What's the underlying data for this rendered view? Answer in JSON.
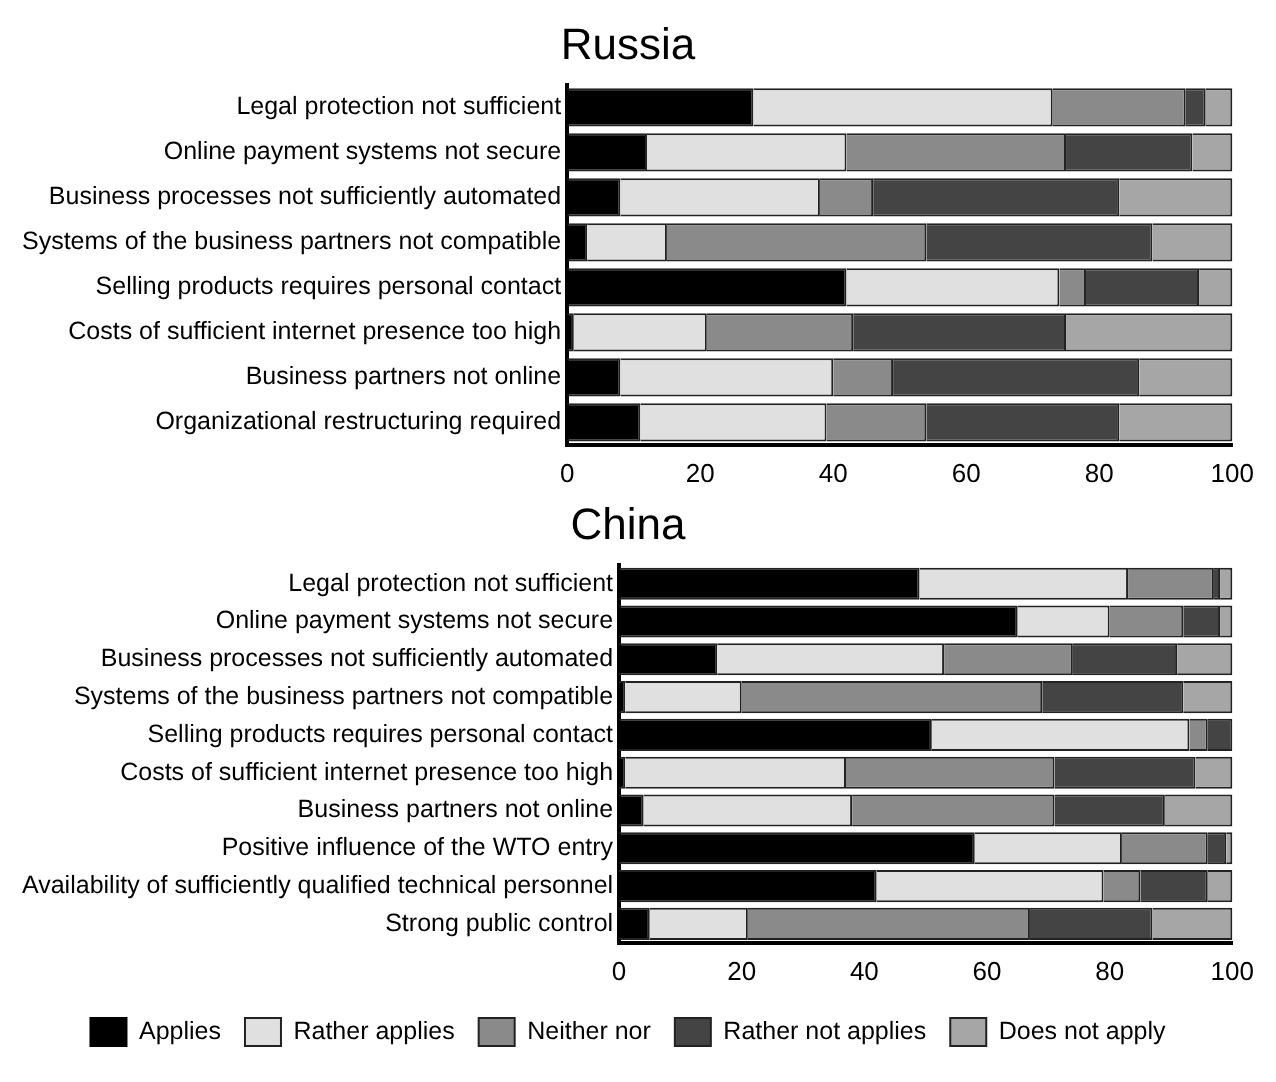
{
  "chart_data": [
    {
      "type": "bar",
      "title": "Russia",
      "orientation": "horizontal",
      "stacked": true,
      "grid": false,
      "legend": false,
      "categories": [
        "Legal protection not sufficient",
        "Online payment systems not secure",
        "Business processes not sufficiently automated",
        "Systems of the business partners not compatible",
        "Selling products requires personal contact",
        "Costs of sufficient internet presence too high",
        "Business partners not online",
        "Organizational restructuring required"
      ],
      "xlim": [
        0,
        100
      ],
      "xticks": [
        0,
        20,
        40,
        60,
        80,
        100
      ],
      "series": [
        {
          "color": "#000000",
          "values": [
            28,
            12,
            8,
            3,
            42,
            1,
            8,
            11
          ]
        },
        {
          "color": "#e0e0e0",
          "values": [
            45,
            30,
            30,
            12,
            32,
            20,
            32,
            28
          ]
        },
        {
          "color": "#8a8a8a",
          "values": [
            20,
            33,
            8,
            39,
            4,
            22,
            9,
            15
          ]
        },
        {
          "color": "#444444",
          "values": [
            3,
            19,
            37,
            34,
            17,
            32,
            37,
            29
          ]
        },
        {
          "color": "#a6a6a6",
          "values": [
            4,
            6,
            17,
            12,
            5,
            25,
            14,
            17
          ]
        }
      ]
    },
    {
      "type": "bar",
      "title": "China",
      "orientation": "horizontal",
      "stacked": true,
      "grid": false,
      "legend": "bottom",
      "categories": [
        "Legal protection not sufficient",
        "Online payment systems not secure",
        "Business processes not sufficiently automated",
        "Systems of the business partners not compatible",
        "Selling products requires personal contact",
        "Costs of sufficient internet presence too high",
        "Business partners not online",
        "Positive influence of the WTO entry",
        "Availability of sufficiently qualified technical personnel",
        "Strong public control"
      ],
      "xlim": [
        0,
        100
      ],
      "xticks": [
        0,
        20,
        40,
        60,
        80,
        100
      ],
      "series": [
        {
          "name": "Applies",
          "color": "#000000",
          "values": [
            49,
            65,
            16,
            1,
            51,
            1,
            4,
            58,
            42,
            5
          ]
        },
        {
          "name": "Rather applies",
          "color": "#e0e0e0",
          "values": [
            34,
            15,
            37,
            19,
            42,
            36,
            34,
            24,
            37,
            16
          ]
        },
        {
          "name": "Neither nor",
          "color": "#8a8a8a",
          "values": [
            14,
            12,
            21,
            49,
            3,
            34,
            33,
            14,
            6,
            46
          ]
        },
        {
          "name": "Rather not applies",
          "color": "#444444",
          "values": [
            1,
            6,
            17,
            23,
            4,
            23,
            18,
            3,
            11,
            20
          ]
        },
        {
          "name": "Does not apply",
          "color": "#a6a6a6",
          "values": [
            2,
            2,
            9,
            8,
            0,
            6,
            11,
            1,
            4,
            13
          ]
        }
      ]
    }
  ]
}
